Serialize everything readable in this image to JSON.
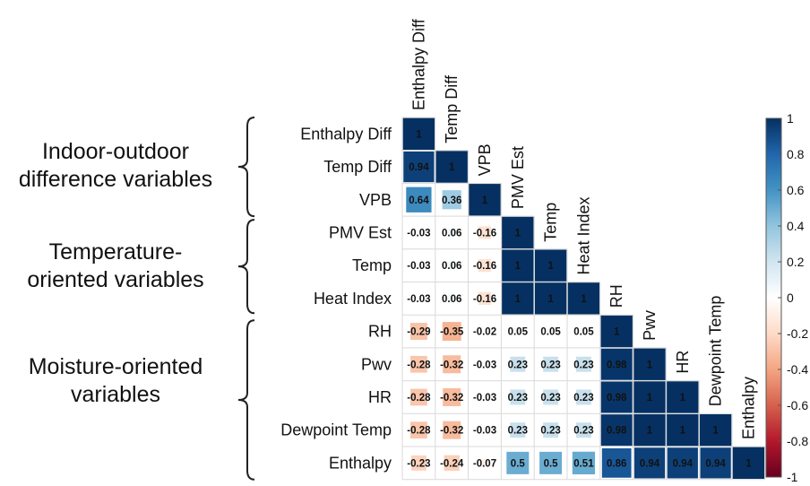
{
  "groups": [
    {
      "line1": "Indoor-outdoor",
      "line2": "difference variables"
    },
    {
      "line1": "Temperature-",
      "line2": "oriented variables"
    },
    {
      "line1": "Moisture-oriented",
      "line2": "variables"
    }
  ],
  "colors": {
    "positive_max": "#053061",
    "neutral": "#ffffff",
    "negative_max": "#67001f",
    "grid": "#d9d9d9"
  },
  "chart_data": {
    "type": "heatmap",
    "layout": "lower-triangular correlation matrix",
    "variables": [
      "Enthalpy Diff",
      "Temp Diff",
      "VPB",
      "PMV Est",
      "Temp",
      "Heat Index",
      "RH",
      "Pwv",
      "HR",
      "Dewpoint Temp",
      "Enthalpy"
    ],
    "matrix": [
      [
        1
      ],
      [
        0.94,
        1
      ],
      [
        0.64,
        0.36,
        1
      ],
      [
        -0.03,
        0.06,
        -0.16,
        1
      ],
      [
        -0.03,
        0.06,
        -0.16,
        1,
        1
      ],
      [
        -0.03,
        0.06,
        -0.16,
        1,
        1,
        1
      ],
      [
        -0.29,
        -0.35,
        -0.02,
        0.05,
        0.05,
        0.05,
        1
      ],
      [
        -0.28,
        -0.32,
        -0.03,
        0.23,
        0.23,
        0.23,
        0.98,
        1
      ],
      [
        -0.28,
        -0.32,
        -0.03,
        0.23,
        0.23,
        0.23,
        0.98,
        1,
        1
      ],
      [
        -0.28,
        -0.32,
        -0.03,
        0.23,
        0.23,
        0.23,
        0.98,
        1,
        1,
        1
      ],
      [
        -0.23,
        -0.24,
        -0.07,
        0.5,
        0.5,
        0.51,
        0.86,
        0.94,
        0.94,
        0.94,
        1
      ]
    ],
    "colorbar": {
      "range": [
        -1,
        1
      ],
      "ticks": [
        1,
        0.8,
        0.6,
        0.4,
        0.2,
        0,
        -0.2,
        -0.4,
        -0.6,
        -0.8,
        -1
      ],
      "tick_labels": [
        "1",
        "0.8",
        "0.6",
        "0.4",
        "0.2",
        "0",
        "-0.2",
        "-0.4",
        "-0.6",
        "-0.8",
        "-1"
      ]
    }
  }
}
